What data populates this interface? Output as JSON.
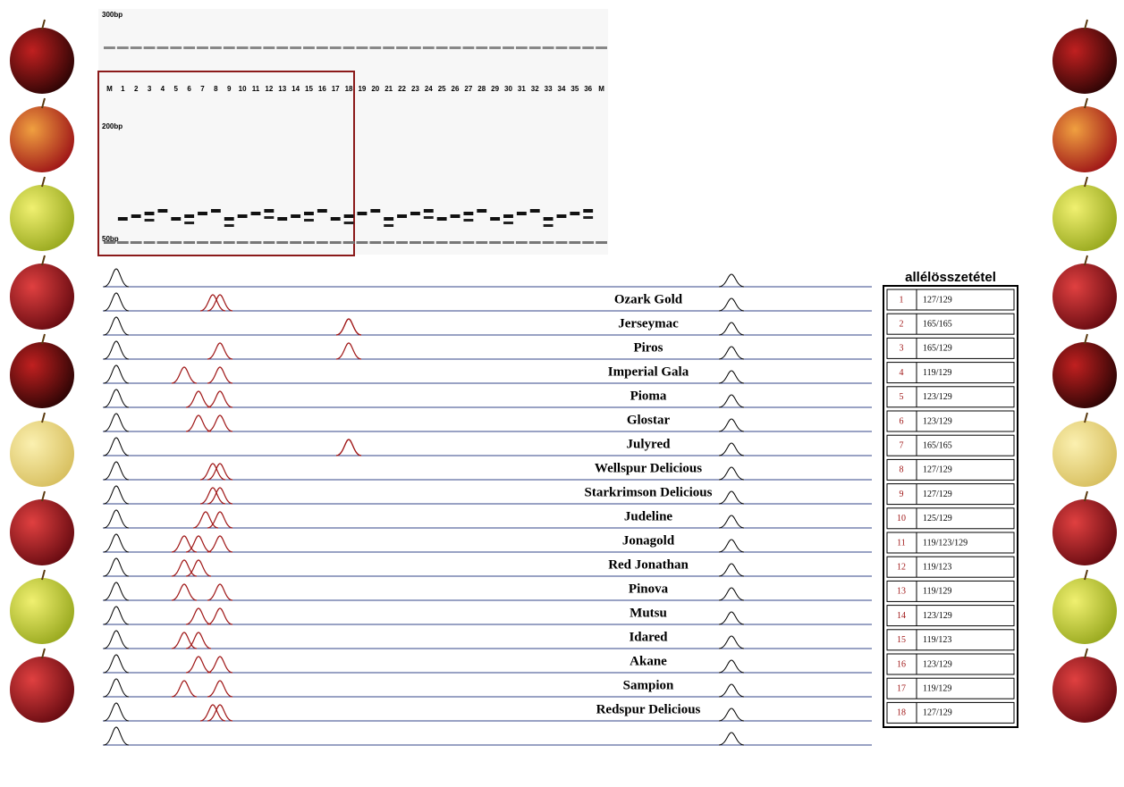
{
  "gel": {
    "size_labels": [
      "300bp",
      "200bp",
      "50bp"
    ],
    "lanes": [
      "M",
      "1",
      "2",
      "3",
      "4",
      "5",
      "6",
      "7",
      "8",
      "9",
      "10",
      "11",
      "12",
      "13",
      "14",
      "15",
      "16",
      "17",
      "18",
      "19",
      "20",
      "21",
      "22",
      "23",
      "24",
      "25",
      "26",
      "27",
      "28",
      "29",
      "30",
      "31",
      "32",
      "33",
      "34",
      "35",
      "36",
      "M"
    ]
  },
  "traces": {
    "varieties": [
      "Ozark Gold",
      "Jerseymac",
      "Piros",
      "Imperial Gala",
      "Pioma",
      "Glostar",
      "Julyred",
      "Wellspur Delicious",
      "Starkrimson Delicious",
      "Judeline",
      "Jonagold",
      "Red Jonathan",
      "Pinova",
      "Mutsu",
      "Idared",
      "Akane",
      "Sampion",
      "Redspur Delicious"
    ]
  },
  "table": {
    "header": "allélösszetétel",
    "rows": [
      [
        "1",
        "127/129"
      ],
      [
        "2",
        "165/165"
      ],
      [
        "3",
        "165/129"
      ],
      [
        "4",
        "119/129"
      ],
      [
        "5",
        "123/129"
      ],
      [
        "6",
        "123/129"
      ],
      [
        "7",
        "165/165"
      ],
      [
        "8",
        "127/129"
      ],
      [
        "9",
        "127/129"
      ],
      [
        "10",
        "125/129"
      ],
      [
        "11",
        "119/123/129"
      ],
      [
        "12",
        "119/123"
      ],
      [
        "13",
        "119/129"
      ],
      [
        "14",
        "123/129"
      ],
      [
        "15",
        "119/123"
      ],
      [
        "16",
        "123/129"
      ],
      [
        "17",
        "119/129"
      ],
      [
        "18",
        "127/129"
      ]
    ]
  }
}
